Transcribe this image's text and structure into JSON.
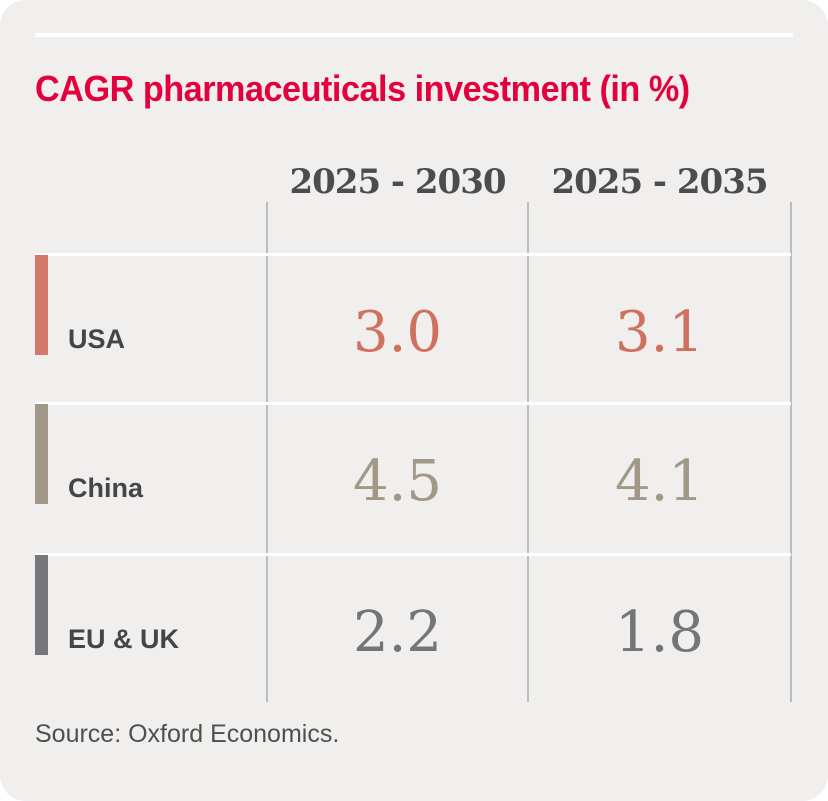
{
  "title": "CAGR pharmaceuticals investment (in %)",
  "table": {
    "headers": [
      "2025 - 2030",
      "2025 - 2035"
    ],
    "rows": [
      {
        "label": "USA",
        "v1": "3.0",
        "v2": "3.1"
      },
      {
        "label": "China",
        "v1": "4.5",
        "v2": "4.1"
      },
      {
        "label": "EU & UK",
        "v1": "2.2",
        "v2": "1.8"
      }
    ]
  },
  "source": "Source: Oxford Economics.",
  "colors": {
    "background": "#f0efed",
    "title": "#e4003c",
    "usa": "#d4786a",
    "china": "#a29888",
    "eu_uk": "#76767b",
    "header_text": "#4c4c4e",
    "label_text": "#454547",
    "divider": "#bcbcbc",
    "separator": "#ffffff"
  },
  "chart_data": {
    "type": "table",
    "title": "CAGR pharmaceuticals investment (in %)",
    "columns": [
      "2025 - 2030",
      "2025 - 2035"
    ],
    "categories": [
      "USA",
      "China",
      "EU & UK"
    ],
    "series": [
      {
        "name": "2025 - 2030",
        "values": [
          3.0,
          4.5,
          2.2
        ]
      },
      {
        "name": "2025 - 2035",
        "values": [
          3.1,
          4.1,
          1.8
        ]
      }
    ],
    "unit": "%",
    "source": "Oxford Economics",
    "legend_position": "none",
    "grid": "column-dividers-and-row-separators"
  }
}
